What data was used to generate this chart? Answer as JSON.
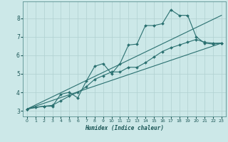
{
  "title": "",
  "xlabel": "Humidex (Indice chaleur)",
  "ylabel": "",
  "bg_color": "#cce8e8",
  "grid_color": "#b0d0d0",
  "line_color": "#2a7070",
  "xlim": [
    -0.5,
    23.5
  ],
  "ylim": [
    2.7,
    8.9
  ],
  "xticks": [
    0,
    1,
    2,
    3,
    4,
    5,
    6,
    7,
    8,
    9,
    10,
    11,
    12,
    13,
    14,
    15,
    16,
    17,
    18,
    19,
    20,
    21,
    22,
    23
  ],
  "yticks": [
    3,
    4,
    5,
    6,
    7,
    8
  ],
  "line1_x": [
    0,
    2,
    3,
    4,
    5,
    6,
    7,
    8,
    9,
    10,
    11,
    12,
    13,
    14,
    15,
    16,
    17,
    18,
    19,
    20,
    21,
    22,
    23
  ],
  "line1_y": [
    3.1,
    3.25,
    3.25,
    3.9,
    4.0,
    3.7,
    4.6,
    5.4,
    5.55,
    5.0,
    5.55,
    6.55,
    6.6,
    7.6,
    7.6,
    7.7,
    8.45,
    8.15,
    8.15,
    7.0,
    6.65,
    6.6,
    6.65
  ],
  "line2_x": [
    0,
    1,
    2,
    3,
    4,
    5,
    6,
    7,
    8,
    9,
    10,
    11,
    12,
    13,
    14,
    15,
    16,
    17,
    18,
    19,
    20,
    21,
    22,
    23
  ],
  "line2_y": [
    3.1,
    3.2,
    3.25,
    3.3,
    3.55,
    3.8,
    4.0,
    4.3,
    4.7,
    4.9,
    5.1,
    5.1,
    5.35,
    5.35,
    5.6,
    5.9,
    6.2,
    6.4,
    6.55,
    6.7,
    6.85,
    6.7,
    6.65,
    6.65
  ],
  "line3_x": [
    0,
    23
  ],
  "line3_y": [
    3.1,
    6.65
  ],
  "line4_x": [
    0,
    23
  ],
  "line4_y": [
    3.1,
    8.15
  ]
}
